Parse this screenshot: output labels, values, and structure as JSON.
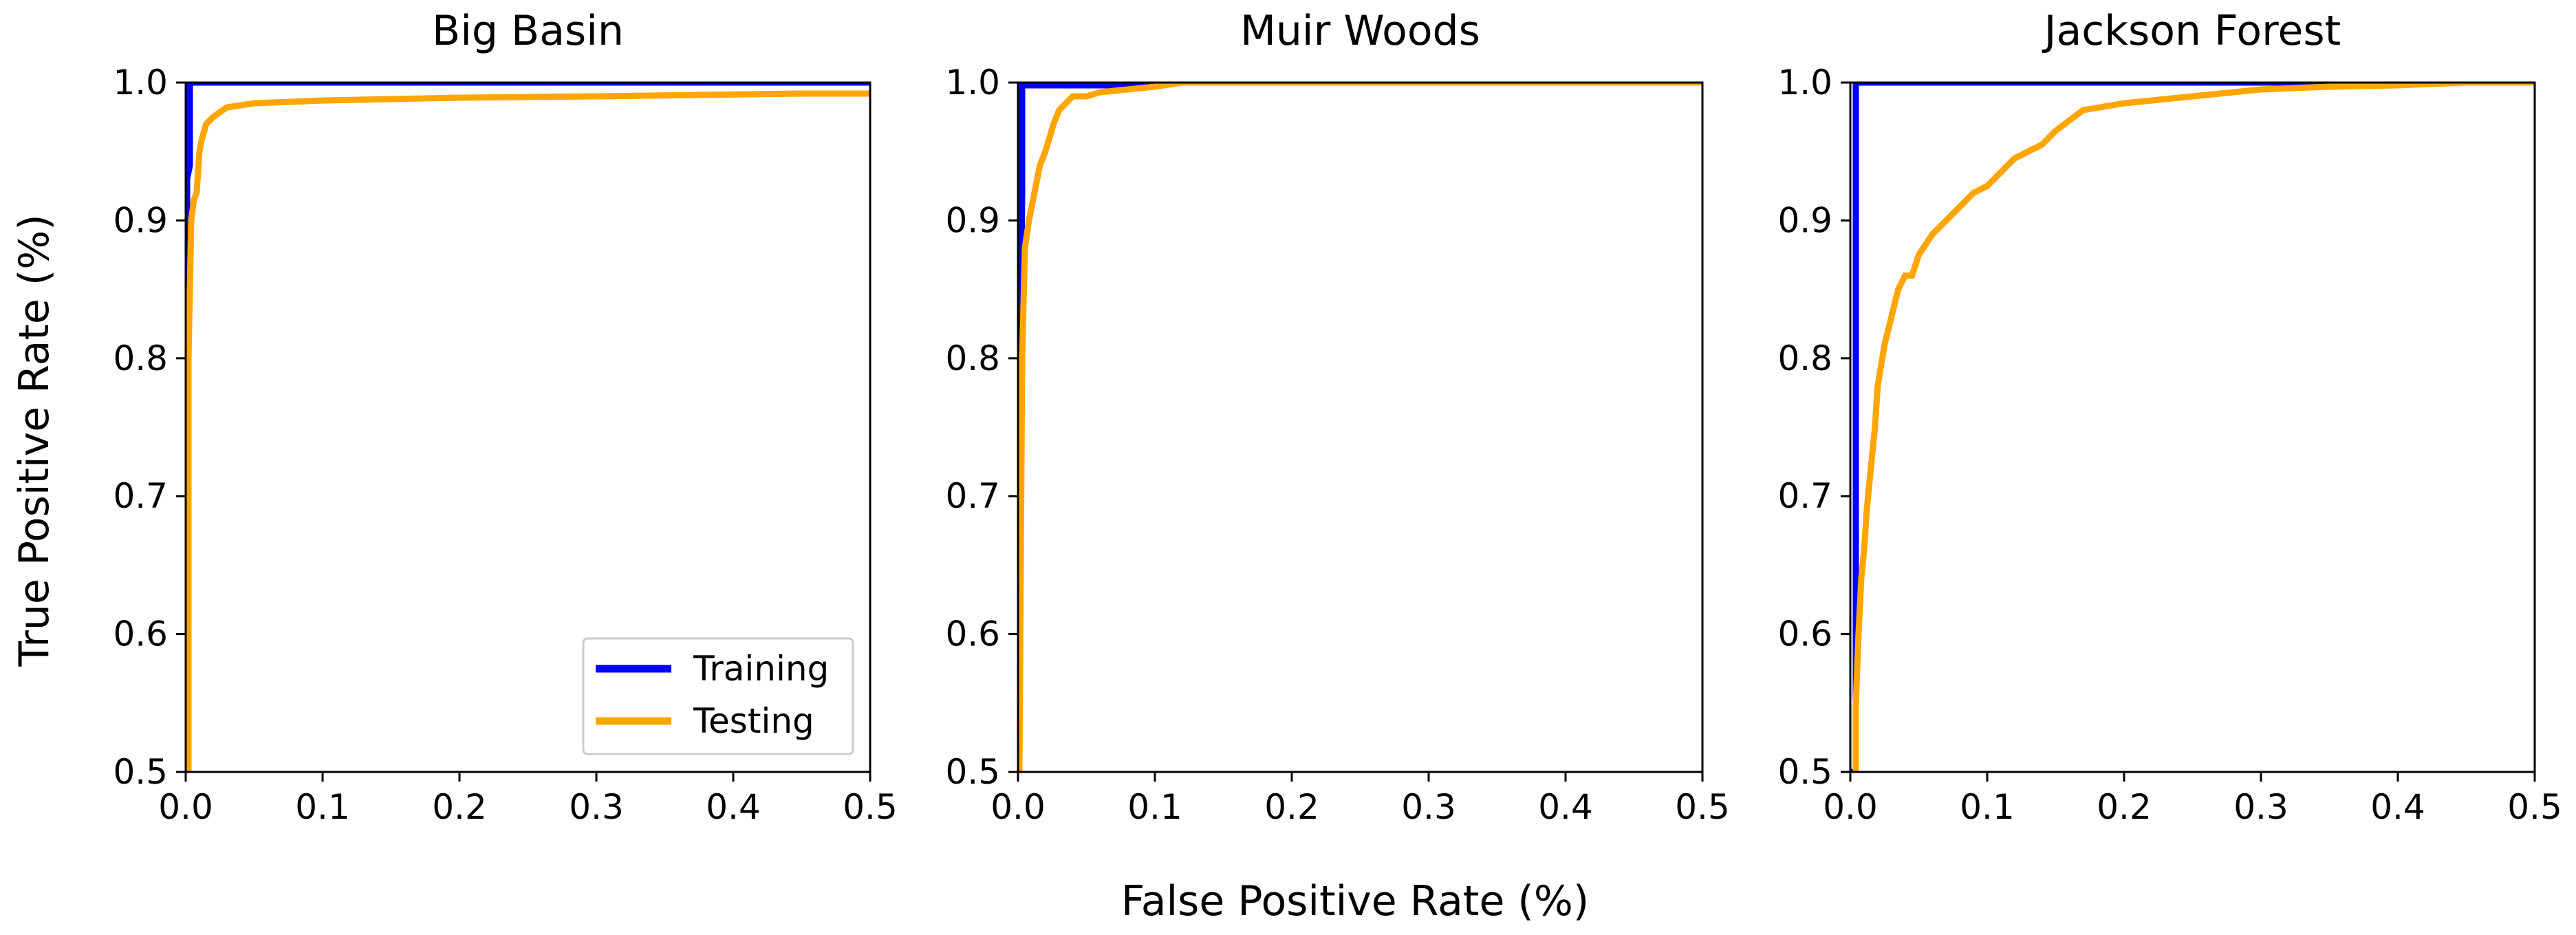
{
  "figure": {
    "xlabel": "False Positive Rate (%)",
    "ylabel": "True Positive Rate (%)"
  },
  "legend": {
    "placement": "lower-right",
    "panel": 0,
    "entries": [
      {
        "label": "Training",
        "color": "#0000ff"
      },
      {
        "label": "Testing",
        "color": "#ffa500"
      }
    ]
  },
  "chart_data": [
    {
      "type": "line",
      "title": "Big Basin",
      "xlim": [
        0.0,
        0.5
      ],
      "ylim": [
        0.5,
        1.0
      ],
      "xticks": [
        "0.0",
        "0.1",
        "0.2",
        "0.3",
        "0.4",
        "0.5"
      ],
      "yticks": [
        "0.5",
        "0.6",
        "0.7",
        "0.8",
        "0.9",
        "1.0"
      ],
      "grid": false,
      "series": [
        {
          "name": "Training",
          "color": "#0000ff",
          "x": [
            0.0,
            0.0,
            0.001,
            0.001,
            0.003,
            0.003,
            0.5
          ],
          "y": [
            0.5,
            0.82,
            0.84,
            0.93,
            0.94,
            1.0,
            1.0
          ]
        },
        {
          "name": "Testing",
          "color": "#ffa500",
          "x": [
            0.0,
            0.002,
            0.002,
            0.004,
            0.006,
            0.008,
            0.01,
            0.012,
            0.015,
            0.02,
            0.03,
            0.05,
            0.1,
            0.2,
            0.3,
            0.45,
            0.5
          ],
          "y": [
            0.5,
            0.5,
            0.8,
            0.9,
            0.915,
            0.92,
            0.95,
            0.96,
            0.97,
            0.975,
            0.982,
            0.985,
            0.987,
            0.989,
            0.99,
            0.992,
            0.992
          ]
        }
      ]
    },
    {
      "type": "line",
      "title": "Muir Woods",
      "xlim": [
        0.0,
        0.5
      ],
      "ylim": [
        0.5,
        1.0
      ],
      "xticks": [
        "0.0",
        "0.1",
        "0.2",
        "0.3",
        "0.4",
        "0.5"
      ],
      "yticks": [
        "0.5",
        "0.6",
        "0.7",
        "0.8",
        "0.9",
        "1.0"
      ],
      "grid": false,
      "series": [
        {
          "name": "Training",
          "color": "#0000ff",
          "x": [
            0.0,
            0.0,
            0.002,
            0.002,
            0.003,
            0.003,
            0.1,
            0.1,
            0.5
          ],
          "y": [
            0.5,
            0.57,
            0.75,
            0.82,
            0.92,
            0.998,
            0.998,
            1.0,
            1.0
          ]
        },
        {
          "name": "Testing",
          "color": "#ffa500",
          "x": [
            0.0,
            0.001,
            0.003,
            0.005,
            0.008,
            0.01,
            0.013,
            0.016,
            0.02,
            0.023,
            0.026,
            0.03,
            0.04,
            0.05,
            0.06,
            0.08,
            0.1,
            0.12,
            0.5
          ],
          "y": [
            0.5,
            0.5,
            0.8,
            0.88,
            0.9,
            0.91,
            0.925,
            0.94,
            0.95,
            0.96,
            0.97,
            0.98,
            0.99,
            0.99,
            0.993,
            0.995,
            0.997,
            1.0,
            1.0
          ]
        }
      ]
    },
    {
      "type": "line",
      "title": "Jackson Forest",
      "xlim": [
        0.0,
        0.5
      ],
      "ylim": [
        0.5,
        1.0
      ],
      "xticks": [
        "0.0",
        "0.1",
        "0.2",
        "0.3",
        "0.4",
        "0.5"
      ],
      "yticks": [
        "0.5",
        "0.6",
        "0.7",
        "0.8",
        "0.9",
        "1.0"
      ],
      "grid": false,
      "series": [
        {
          "name": "Training",
          "color": "#0000ff",
          "x": [
            0.0,
            0.0,
            0.004,
            0.004,
            0.4
          ],
          "y": [
            0.5,
            0.5,
            0.5,
            1.0,
            1.0
          ]
        },
        {
          "name": "Testing",
          "color": "#ffa500",
          "x": [
            0.004,
            0.004,
            0.006,
            0.008,
            0.01,
            0.012,
            0.015,
            0.018,
            0.02,
            0.025,
            0.03,
            0.035,
            0.04,
            0.045,
            0.05,
            0.06,
            0.07,
            0.08,
            0.09,
            0.1,
            0.11,
            0.12,
            0.13,
            0.14,
            0.15,
            0.17,
            0.2,
            0.25,
            0.3,
            0.35,
            0.4,
            0.45,
            0.5
          ],
          "y": [
            0.5,
            0.55,
            0.6,
            0.64,
            0.66,
            0.69,
            0.72,
            0.75,
            0.78,
            0.81,
            0.83,
            0.85,
            0.86,
            0.86,
            0.875,
            0.89,
            0.9,
            0.91,
            0.92,
            0.925,
            0.935,
            0.945,
            0.95,
            0.955,
            0.965,
            0.98,
            0.985,
            0.99,
            0.995,
            0.997,
            0.998,
            1.0,
            1.0
          ]
        }
      ]
    }
  ]
}
